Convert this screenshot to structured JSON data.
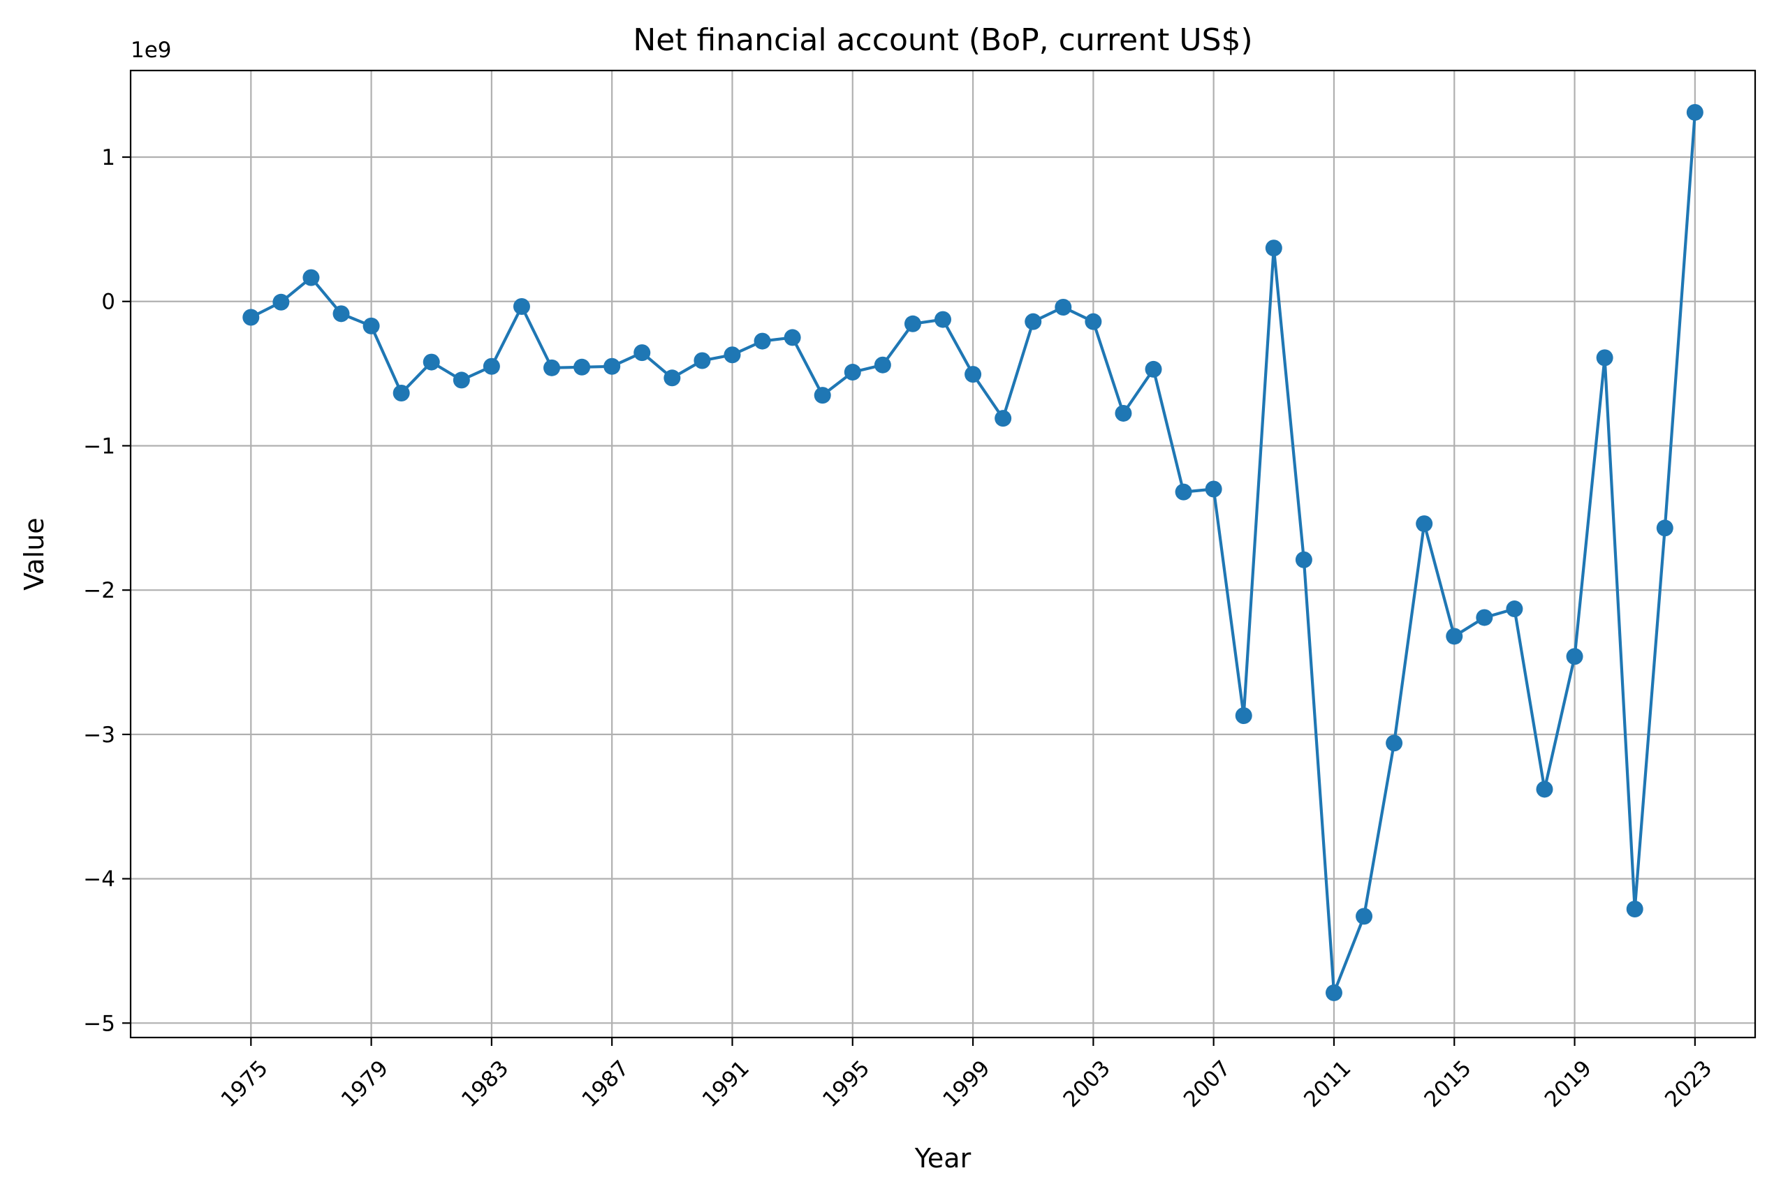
{
  "chart_data": {
    "type": "line",
    "title": "Net financial account (BoP, current US$)",
    "xlabel": "Year",
    "ylabel": "Value",
    "y_offset_label": "1e9",
    "xlim": [
      1971,
      2025
    ],
    "ylim": [
      -5.1,
      1.6
    ],
    "x_ticks": [
      1975,
      1979,
      1983,
      1987,
      1991,
      1995,
      1999,
      2003,
      2007,
      2011,
      2015,
      2019,
      2023
    ],
    "y_ticks": [
      -5,
      -4,
      -3,
      -2,
      -1,
      0,
      1
    ],
    "grid": true,
    "x_tick_rotation": 45,
    "line_color": "#1f77b4",
    "series": [
      {
        "x": [
          1975,
          1976,
          1977,
          1978,
          1979,
          1980,
          1981,
          1982,
          1983,
          1984,
          1985,
          1986,
          1987,
          1988,
          1989,
          1990,
          1991,
          1992,
          1993,
          1994,
          1995,
          1996,
          1997,
          1998,
          1999,
          2000,
          2001,
          2002,
          2003,
          2004,
          2005,
          2006,
          2007,
          2008,
          2009,
          2010,
          2011,
          2012,
          2013,
          2014,
          2015,
          2016,
          2017,
          2018,
          2019,
          2020,
          2021,
          2022,
          2023
        ],
        "values": [
          -0.11,
          -0.005,
          0.165,
          -0.085,
          -0.17,
          -0.635,
          -0.42,
          -0.545,
          -0.45,
          -0.035,
          -0.46,
          -0.455,
          -0.45,
          -0.355,
          -0.53,
          -0.41,
          -0.37,
          -0.275,
          -0.25,
          -0.65,
          -0.49,
          -0.44,
          -0.155,
          -0.125,
          -0.505,
          -0.81,
          -0.14,
          -0.04,
          -0.14,
          -0.775,
          -0.47,
          -1.32,
          -1.3,
          -2.87,
          0.37,
          -1.79,
          -4.79,
          -4.26,
          -3.06,
          -1.54,
          -2.32,
          -2.19,
          -2.13,
          -3.38,
          -2.46,
          -0.39,
          -4.21,
          -1.57,
          1.31
        ]
      }
    ]
  }
}
